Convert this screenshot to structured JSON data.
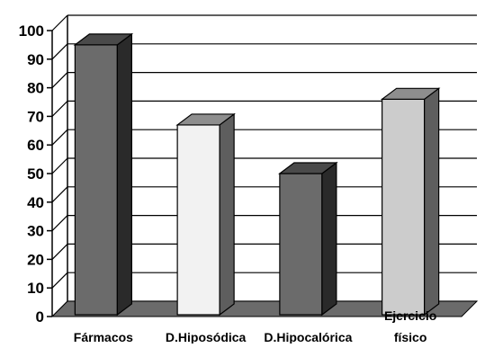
{
  "chart_data": {
    "type": "bar",
    "style": "3d",
    "categories": [
      "Fármacos",
      "D.Hiposódica",
      "D.Hipocalórica",
      "Ejercicio físico"
    ],
    "category_label_lines": [
      [
        "Fármacos"
      ],
      [
        "D.Hiposódica"
      ],
      [
        "D.Hipocalórica"
      ],
      [
        "Ejercicio",
        "físico"
      ]
    ],
    "values": [
      95,
      67,
      50,
      76
    ],
    "bar_colors": [
      {
        "front": "#6b6b6b",
        "top": "#4a4a4a",
        "side": "#2a2a2a"
      },
      {
        "front": "#f2f2f2",
        "top": "#8e8e8e",
        "side": "#5e5e5e"
      },
      {
        "front": "#6b6b6b",
        "top": "#4a4a4a",
        "side": "#2a2a2a"
      },
      {
        "front": "#cccccc",
        "top": "#8e8e8e",
        "side": "#5e5e5e"
      }
    ],
    "ylim": [
      0,
      100
    ],
    "yticks": [
      0,
      10,
      20,
      30,
      40,
      50,
      60,
      70,
      80,
      90,
      100
    ],
    "grid": true,
    "title": "",
    "xlabel": "",
    "ylabel": "",
    "floor_color": "#6b6b6b",
    "legend": "none"
  }
}
